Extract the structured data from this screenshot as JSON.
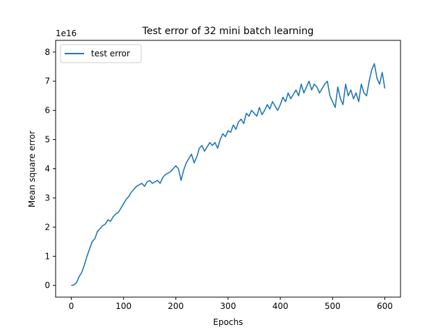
{
  "chart_data": {
    "type": "line",
    "title": "Test error of 32 mini batch learning",
    "xlabel": "Epochs",
    "ylabel": "Mean square error",
    "y_multiplier_label": "1e16",
    "xlim": [
      -30,
      630
    ],
    "ylim": [
      -0.4,
      8.4
    ],
    "xticks": [
      0,
      100,
      200,
      300,
      400,
      500,
      600
    ],
    "yticks": [
      0,
      1,
      2,
      3,
      4,
      5,
      6,
      7,
      8
    ],
    "legend": {
      "position": "upper-left",
      "entries": [
        "test error"
      ]
    },
    "grid": false,
    "series": [
      {
        "name": "test error",
        "color": "#1f77b4",
        "x": [
          0,
          5,
          10,
          15,
          20,
          25,
          30,
          35,
          40,
          45,
          50,
          55,
          60,
          65,
          70,
          75,
          80,
          85,
          90,
          95,
          100,
          105,
          110,
          115,
          120,
          125,
          130,
          135,
          140,
          145,
          150,
          155,
          160,
          165,
          170,
          175,
          180,
          185,
          190,
          195,
          200,
          205,
          210,
          215,
          220,
          225,
          230,
          235,
          240,
          245,
          250,
          255,
          260,
          265,
          270,
          275,
          280,
          285,
          290,
          295,
          300,
          305,
          310,
          315,
          320,
          325,
          330,
          335,
          340,
          345,
          350,
          355,
          360,
          365,
          370,
          375,
          380,
          385,
          390,
          395,
          400,
          405,
          410,
          415,
          420,
          425,
          430,
          435,
          440,
          445,
          450,
          455,
          460,
          465,
          470,
          475,
          480,
          485,
          490,
          495,
          500,
          505,
          510,
          515,
          520,
          525,
          530,
          535,
          540,
          545,
          550,
          555,
          560,
          565,
          570,
          575,
          580,
          585,
          590,
          595,
          600
        ],
        "y": [
          0.0,
          0.02,
          0.1,
          0.3,
          0.45,
          0.7,
          1.0,
          1.25,
          1.5,
          1.6,
          1.85,
          1.95,
          2.05,
          2.1,
          2.25,
          2.2,
          2.35,
          2.45,
          2.5,
          2.65,
          2.8,
          2.95,
          3.05,
          3.2,
          3.3,
          3.4,
          3.45,
          3.5,
          3.4,
          3.55,
          3.6,
          3.5,
          3.55,
          3.6,
          3.5,
          3.7,
          3.8,
          3.85,
          3.9,
          4.0,
          4.1,
          4.0,
          3.6,
          3.95,
          4.2,
          4.35,
          4.5,
          4.2,
          4.4,
          4.7,
          4.8,
          4.6,
          4.75,
          4.9,
          4.8,
          4.9,
          4.7,
          5.0,
          5.2,
          5.1,
          5.3,
          5.25,
          5.5,
          5.35,
          5.6,
          5.7,
          5.55,
          5.9,
          5.8,
          6.0,
          5.9,
          5.8,
          6.1,
          5.85,
          6.0,
          6.2,
          6.05,
          6.3,
          6.15,
          6.0,
          6.2,
          6.45,
          6.3,
          6.6,
          6.4,
          6.55,
          6.7,
          6.5,
          6.9,
          6.6,
          6.8,
          7.0,
          6.7,
          6.9,
          6.8,
          6.6,
          6.75,
          6.9,
          7.0,
          6.5,
          6.3,
          6.1,
          6.8,
          6.4,
          6.2,
          6.9,
          6.5,
          6.7,
          6.4,
          6.6,
          6.3,
          6.9,
          6.6,
          6.5,
          7.0,
          7.4,
          7.6,
          7.1,
          6.9,
          7.3,
          6.75
        ]
      }
    ]
  }
}
